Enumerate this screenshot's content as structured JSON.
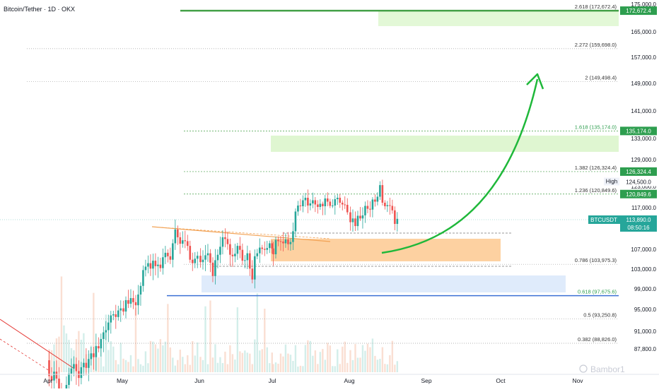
{
  "header": {
    "symbol_title": "Bitcoin/Tether · 1D · OKX"
  },
  "colors": {
    "up": "#26a69a",
    "down": "#ef5350",
    "fib_line": "#9e9e9e",
    "fib_green": "#43a047",
    "label_green": "#2e9e4f",
    "zone_green": "#d9f5c9",
    "zone_orange": "#fdc68a",
    "zone_blue": "#dce9fb",
    "support_blue": "#3b6fd4",
    "arrow": "#1fb83a",
    "trend_red": "#e53935",
    "trend_orange": "#f2a254",
    "axis_text": "#131722"
  },
  "price_axis": {
    "ticks": [
      "175,000.0",
      "165,000.0",
      "157,000.0",
      "149,000.0",
      "141,000.0",
      "133,000.0",
      "129,000.0",
      "123,000.0",
      "117,000.0",
      "107,000.0",
      "103,000.0",
      "99,000.0",
      "95,000.0",
      "91,000.0",
      "87,800.0"
    ],
    "labels": {
      "top": "172,672.4",
      "fib1618": "135,174.0",
      "fib1382": "126,324.4",
      "high_tag": "High",
      "high_value": "124,500.0",
      "fib1236": "120,849.6",
      "symbol": "BTCUSDT",
      "last_price": "113,890.0",
      "countdown": "08:50:16"
    }
  },
  "time_axis": {
    "labels": [
      "Apr",
      "May",
      "Jun",
      "Jul",
      "Aug",
      "Sep",
      "Oct",
      "Nov"
    ]
  },
  "fib_levels": [
    {
      "ratio": "2.618",
      "value": 172672.4,
      "text": "2.618 (172,672.4)"
    },
    {
      "ratio": "2.272",
      "value": 159698.0,
      "text": "2.272 (159,698.0)"
    },
    {
      "ratio": "2",
      "value": 149498.4,
      "text": "2 (149,498.4)"
    },
    {
      "ratio": "1.618",
      "value": 135174.0,
      "text": "1.618 (135,174.0)"
    },
    {
      "ratio": "1.382",
      "value": 126324.4,
      "text": "1.382 (126,324.4)"
    },
    {
      "ratio": "1.236",
      "value": 120849.6,
      "text": "1.236 (120,849.6)"
    },
    {
      "ratio": "0.786",
      "value": 103975.3,
      "text": "0.786 (103,975.3)"
    },
    {
      "ratio": "0.618",
      "value": 97675.6,
      "text": "0.618 (97,675.6)"
    },
    {
      "ratio": "0.5",
      "value": 93250.8,
      "text": "0.5 (93,250.8)"
    },
    {
      "ratio": "0.382",
      "value": 88826.0,
      "text": "0.382 (88,826.0)"
    }
  ],
  "watermark": "Bambor1",
  "chart_data": {
    "type": "candlestick",
    "title": "Bitcoin/Tether · 1D · OKX",
    "x_range": [
      "2025-03-20",
      "2025-11-10"
    ],
    "y_range": [
      84000,
      176000
    ],
    "y_ticks": [
      175000,
      165000,
      157000,
      149000,
      141000,
      133000,
      129000,
      123000,
      117000,
      107000,
      103000,
      99000,
      95000,
      91000,
      87800
    ],
    "x_ticks": [
      "Apr",
      "May",
      "Jun",
      "Jul",
      "Aug",
      "Sep",
      "Oct",
      "Nov"
    ],
    "grid": false,
    "last_price": 113890.0,
    "session_high": 124500.0,
    "close": [
      {
        "period": "Apr",
        "values": [
          83500,
          82800,
          84200,
          83100,
          81500,
          79800,
          80600,
          82100,
          83900,
          84700,
          85400,
          84300,
          83200,
          84900,
          85600,
          84800,
          86200,
          87100,
          86500,
          88300,
          87900,
          89600,
          90800,
          91200,
          92600,
          93900,
          94100,
          93600,
          94800,
          95200
        ]
      },
      {
        "period": "May",
        "values": [
          94600,
          96800,
          96100,
          97200,
          96400,
          95800,
          97900,
          99600,
          102800,
          103500,
          104200,
          103100,
          104700,
          103600,
          103900,
          103200,
          105400,
          106300,
          105600,
          104900,
          108400,
          111600,
          109800,
          108300,
          109100,
          108900,
          107800,
          104900,
          104200,
          105100,
          105700
        ]
      },
      {
        "period": "Jun",
        "values": [
          104400,
          104900,
          105800,
          106200,
          104300,
          101600,
          104800,
          105900,
          107600,
          109800,
          109400,
          108200,
          105900,
          105600,
          106100,
          107800,
          106900,
          104700,
          104800,
          106200,
          103100,
          100900,
          105600,
          106200,
          107400,
          107100,
          106900,
          107300,
          108400,
          107200
        ]
      },
      {
        "period": "Jul",
        "values": [
          106000,
          109200,
          108900,
          108800,
          108400,
          109300,
          108200,
          108700,
          111200,
          116000,
          117600,
          117400,
          119100,
          119800,
          117600,
          118200,
          119100,
          117900,
          117200,
          118100,
          117400,
          119600,
          118700,
          117500,
          117600,
          119400,
          119800,
          118400,
          117900,
          117800,
          115800
        ]
      },
      {
        "period": "Aug",
        "values": [
          113300,
          114200,
          112400,
          114900,
          114200,
          115000,
          117500,
          116700,
          116500,
          119300,
          118700,
          120100,
          123300,
          118400,
          117400,
          117700,
          117500,
          116300,
          112900,
          114100
        ]
      }
    ]
  }
}
